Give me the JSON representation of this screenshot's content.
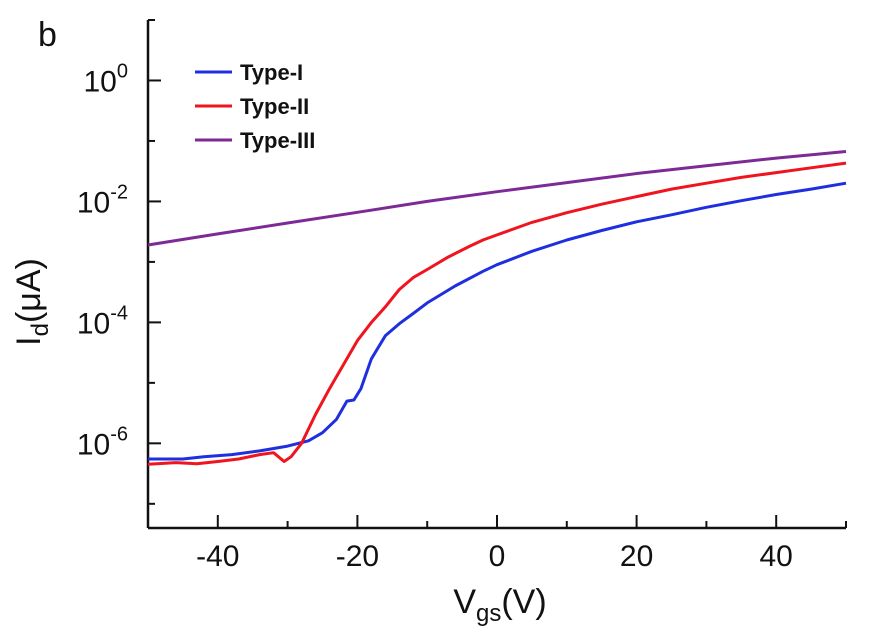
{
  "panel_label": "b",
  "chart_data": {
    "type": "line",
    "xlabel": {
      "main": "V",
      "sub": "gs",
      "unit": "(V)"
    },
    "ylabel": {
      "main": "I",
      "sub": "d",
      "unit": "(μA)"
    },
    "xlim": [
      -50,
      50
    ],
    "ylim_log10": [
      -7.4,
      1.0
    ],
    "y_scale": "log",
    "x_ticks": [
      -40,
      -20,
      0,
      20,
      40
    ],
    "x_tick_labels": [
      "-40",
      "-20",
      "0",
      "20",
      "40"
    ],
    "y_ticks": [
      {
        "base": "10",
        "exp": "0",
        "value": 1
      },
      {
        "base": "10",
        "exp": "-2",
        "value": 0.01
      },
      {
        "base": "10",
        "exp": "-4",
        "value": 0.0001
      },
      {
        "base": "10",
        "exp": "-6",
        "value": 1e-06
      }
    ],
    "grid": false,
    "legend_position": "top-left",
    "series": [
      {
        "name": "Type-I",
        "color": "#1f2fe0",
        "x": [
          -50,
          -45,
          -42,
          -38,
          -34,
          -30,
          -27,
          -25,
          -23,
          -21.5,
          -20.5,
          -19.5,
          -18,
          -16,
          -14,
          -12,
          -10,
          -6,
          -2,
          0,
          5,
          10,
          15,
          20,
          25,
          30,
          35,
          40,
          45,
          50
        ],
        "y": [
          5.5e-07,
          5.5e-07,
          6e-07,
          6.5e-07,
          7.5e-07,
          9e-07,
          1.1e-06,
          1.5e-06,
          2.5e-06,
          5e-06,
          5.2e-06,
          8e-06,
          2.5e-05,
          6e-05,
          9.5e-05,
          0.00014,
          0.00021,
          0.0004,
          0.0007,
          0.0009,
          0.0015,
          0.0023,
          0.0033,
          0.0046,
          0.006,
          0.008,
          0.0103,
          0.013,
          0.016,
          0.02
        ]
      },
      {
        "name": "Type-II",
        "color": "#f0141e",
        "x": [
          -50,
          -46,
          -43,
          -40,
          -37,
          -34,
          -32,
          -30.5,
          -29.5,
          -28,
          -26,
          -24,
          -22,
          -20,
          -18,
          -16,
          -14,
          -12,
          -10,
          -7,
          -4,
          -2,
          0,
          5,
          10,
          15,
          20,
          25,
          30,
          35,
          40,
          45,
          50
        ],
        "y": [
          4.5e-07,
          4.8e-07,
          4.6e-07,
          5e-07,
          5.5e-07,
          6.5e-07,
          7e-07,
          5e-07,
          6e-07,
          1e-06,
          3e-06,
          8e-06,
          2e-05,
          5e-05,
          0.0001,
          0.00018,
          0.00035,
          0.00055,
          0.00075,
          0.0012,
          0.0018,
          0.0023,
          0.0028,
          0.0045,
          0.0065,
          0.009,
          0.012,
          0.016,
          0.02,
          0.025,
          0.03,
          0.036,
          0.043
        ]
      },
      {
        "name": "Type-III",
        "color": "#7d2a96",
        "x": [
          -50,
          -40,
          -30,
          -20,
          -10,
          0,
          10,
          20,
          30,
          40,
          50
        ],
        "y": [
          0.0019,
          0.0029,
          0.0044,
          0.0066,
          0.01,
          0.0145,
          0.0205,
          0.029,
          0.039,
          0.052,
          0.067
        ]
      }
    ]
  }
}
